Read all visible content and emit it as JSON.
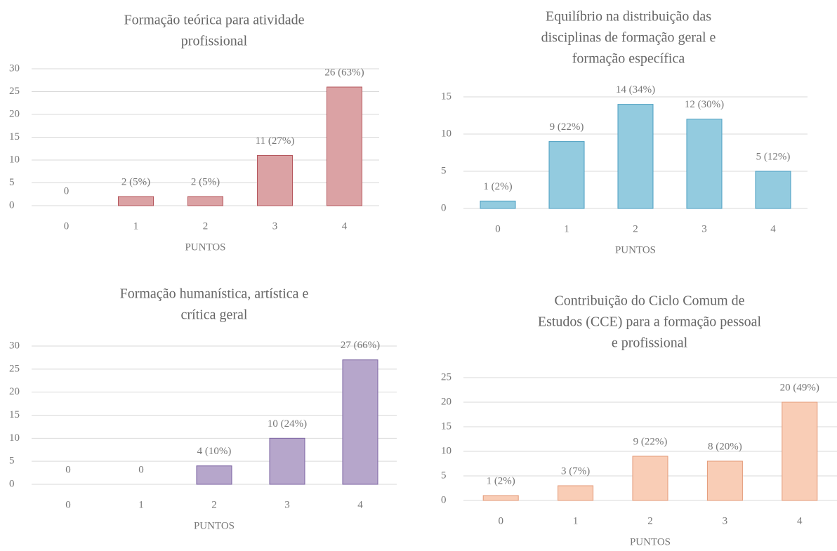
{
  "chart_data": [
    {
      "type": "bar",
      "title": [
        "Formação teórica para atividade",
        "profissional"
      ],
      "x_label": "PUNTOS",
      "categories": [
        "0",
        "1",
        "2",
        "3",
        "4"
      ],
      "values": [
        0,
        2,
        2,
        11,
        26
      ],
      "value_labels": [
        "0",
        "2 (5%)",
        "2 (5%)",
        "11 (27%)",
        "26 (63%)"
      ],
      "color": "#dba2a4",
      "edge": "#b5575d",
      "ylim": [
        0,
        30
      ],
      "yticks": [
        0,
        5,
        10,
        15,
        20,
        25,
        30
      ],
      "grid": true
    },
    {
      "type": "bar",
      "title": [
        "Equilíbrio na distribuição das",
        "disciplinas de formação geral e",
        "formação específica"
      ],
      "x_label": "PUNTOS",
      "categories": [
        "0",
        "1",
        "2",
        "3",
        "4"
      ],
      "values": [
        1,
        9,
        14,
        12,
        5
      ],
      "value_labels": [
        "1 (2%)",
        "9 (22%)",
        "14 (34%)",
        "12 (30%)",
        "5 (12%)"
      ],
      "color": "#93cbdf",
      "edge": "#4a9ec0",
      "ylim": [
        0,
        15
      ],
      "yticks": [
        0,
        5,
        10,
        15
      ],
      "grid": true
    },
    {
      "type": "bar",
      "title": [
        "Formação humanística, artística e",
        "crítica geral"
      ],
      "x_label": "PUNTOS",
      "categories": [
        "0",
        "1",
        "2",
        "3",
        "4"
      ],
      "values": [
        0,
        0,
        4,
        10,
        27
      ],
      "value_labels": [
        "0",
        "0",
        "4 (10%)",
        "10 (24%)",
        "27 (66%)"
      ],
      "color": "#b6a6cb",
      "edge": "#7a62a0",
      "ylim": [
        0,
        30
      ],
      "yticks": [
        0,
        5,
        10,
        15,
        20,
        25,
        30
      ],
      "grid": true
    },
    {
      "type": "bar",
      "title": [
        "Contribuição do Ciclo Comum de",
        "Estudos (CCE) para a formação pessoal",
        "e profissional"
      ],
      "x_label": "PUNTOS",
      "categories": [
        "0",
        "1",
        "2",
        "3",
        "4"
      ],
      "values": [
        1,
        3,
        9,
        8,
        20
      ],
      "value_labels": [
        "1 (2%)",
        "3 (7%)",
        "9 (22%)",
        "8 (20%)",
        "20 (49%)"
      ],
      "color": "#f9cdb6",
      "edge": "#e39a78",
      "ylim": [
        0,
        25
      ],
      "yticks": [
        0,
        5,
        10,
        15,
        20,
        25
      ],
      "grid": true
    }
  ]
}
